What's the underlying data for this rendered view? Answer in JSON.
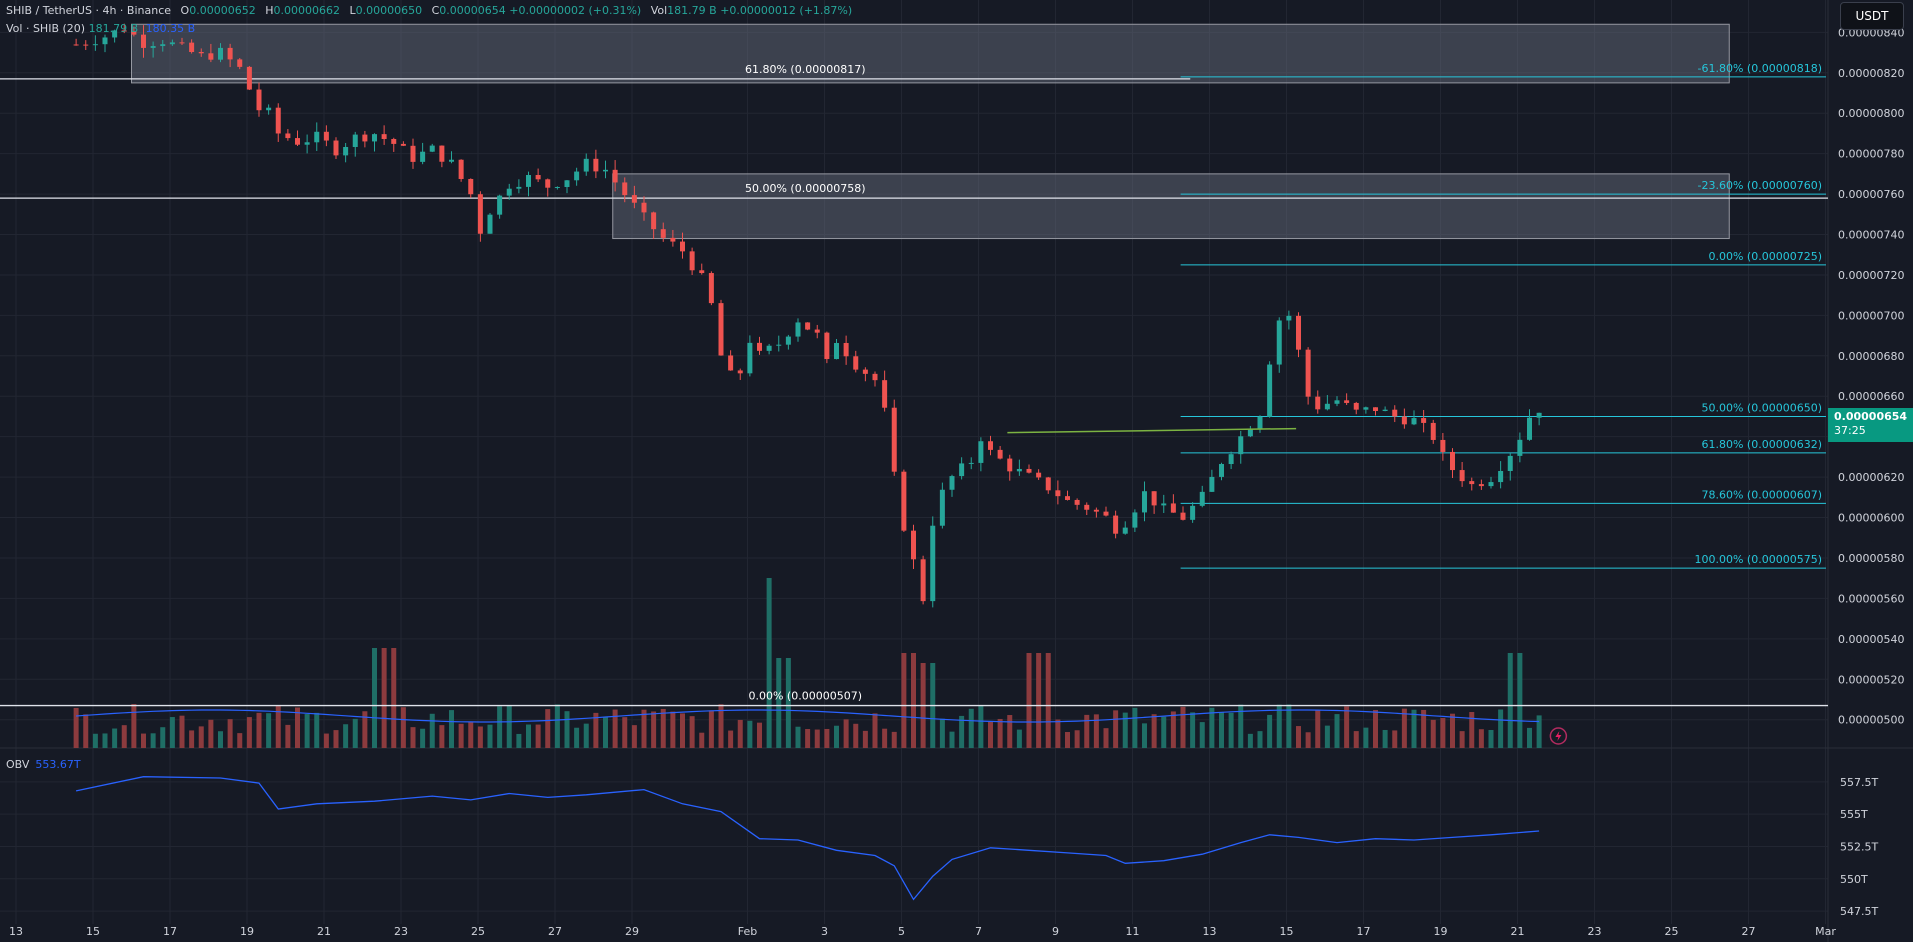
{
  "header": {
    "symbol": "SHIB / TetherUS · 4h · Binance",
    "open_label": "O",
    "open": "0.00000652",
    "high_label": "H",
    "high": "0.00000662",
    "low_label": "L",
    "low": "0.00000650",
    "close_label": "C",
    "close": "0.00000654",
    "change": "+0.00000002 (+0.31%)",
    "vol_label": "Vol",
    "vol": "181.79 B",
    "vol_change": "+0.00000012 (+1.87%)",
    "vol_indicator": "Vol · SHIB (20)",
    "vol_values": "181.79 B",
    "vol_ma": "180.35 B"
  },
  "currency_button": "USDT",
  "last_price": {
    "price": "0.00000654",
    "countdown": "37:25"
  },
  "obv": {
    "label": "OBV",
    "value": "553.67T"
  },
  "colors": {
    "background": "#161a25",
    "grid": "#222632",
    "up": "#26a69a",
    "down": "#ef5350",
    "vol_up": "#1f6e66",
    "vol_down": "#8c3b3e",
    "fib": "#26c6da",
    "obv": "#2962ff",
    "trendline": "#7cb342",
    "zone": "#6b7080"
  },
  "chart_data": {
    "type": "candlestick",
    "symbol": "SHIB/USDT",
    "timeframe": "4h",
    "price_axis": {
      "range": [
        4.86e-06,
        8.56e-06
      ],
      "ticks": [
        "0.00000500",
        "0.00000520",
        "0.00000540",
        "0.00000560",
        "0.00000580",
        "0.00000600",
        "0.00000620",
        "0.00000640",
        "0.00000660",
        "0.00000680",
        "0.00000700",
        "0.00000720",
        "0.00000740",
        "0.00000760",
        "0.00000780",
        "0.00000800",
        "0.00000820",
        "0.00000840"
      ]
    },
    "obv_axis": {
      "range": [
        546.5,
        559.5
      ],
      "ticks": [
        "557.5T",
        "555T",
        "552.5T",
        "550T",
        "547.5T"
      ]
    },
    "time_axis": [
      "13",
      "15",
      "17",
      "19",
      "21",
      "23",
      "25",
      "27",
      "29",
      "Feb",
      "3",
      "5",
      "7",
      "9",
      "11",
      "13",
      "15",
      "17",
      "19",
      "21",
      "23",
      "25",
      "27",
      "Mar"
    ],
    "price_path": [
      [
        -1.5,
        834
      ],
      [
        0,
        838
      ],
      [
        1,
        842
      ],
      [
        2,
        835
      ],
      [
        3,
        836
      ],
      [
        4,
        832
      ],
      [
        5,
        828
      ],
      [
        6,
        830
      ],
      [
        7,
        822
      ],
      [
        8,
        802
      ],
      [
        8.5,
        800
      ],
      [
        9,
        790
      ],
      [
        10,
        786
      ],
      [
        11,
        788
      ],
      [
        12,
        782
      ],
      [
        13,
        788
      ],
      [
        14,
        790
      ],
      [
        15,
        785
      ],
      [
        16,
        778
      ],
      [
        17,
        782
      ],
      [
        18,
        775
      ],
      [
        19,
        760
      ],
      [
        19.5,
        742
      ],
      [
        20,
        752
      ],
      [
        21,
        765
      ],
      [
        22,
        768
      ],
      [
        23,
        764
      ],
      [
        24,
        768
      ],
      [
        25,
        775
      ],
      [
        26,
        772
      ],
      [
        27,
        760
      ],
      [
        28,
        748
      ],
      [
        29,
        738
      ],
      [
        30,
        732
      ],
      [
        31,
        718
      ],
      [
        31.5,
        705
      ],
      [
        32,
        680
      ],
      [
        32.5,
        670
      ],
      [
        33,
        672
      ],
      [
        33.5,
        688
      ],
      [
        34,
        680
      ],
      [
        35,
        686
      ],
      [
        36,
        698
      ],
      [
        37,
        690
      ],
      [
        37.5,
        676
      ],
      [
        38,
        688
      ],
      [
        39,
        676
      ],
      [
        40,
        668
      ],
      [
        40.5,
        652
      ],
      [
        41,
        620
      ],
      [
        41.5,
        596
      ],
      [
        42,
        578
      ],
      [
        42.5,
        560
      ],
      [
        43,
        598
      ],
      [
        43.5,
        612
      ],
      [
        44,
        620
      ],
      [
        45,
        628
      ],
      [
        45.5,
        640
      ],
      [
        46,
        632
      ],
      [
        47,
        625
      ],
      [
        48,
        620
      ],
      [
        49,
        615
      ],
      [
        50,
        608
      ],
      [
        51,
        605
      ],
      [
        52,
        600
      ],
      [
        52.5,
        595
      ],
      [
        53,
        598
      ],
      [
        54,
        612
      ],
      [
        55,
        604
      ],
      [
        56,
        600
      ],
      [
        57,
        610
      ],
      [
        58,
        628
      ],
      [
        59,
        640
      ],
      [
        60,
        652
      ],
      [
        60.5,
        678
      ],
      [
        61,
        698
      ],
      [
        61.5,
        700
      ],
      [
        62,
        682
      ],
      [
        62.5,
        660
      ],
      [
        63,
        655
      ],
      [
        64,
        658
      ],
      [
        65,
        652
      ],
      [
        66,
        654
      ],
      [
        67,
        650
      ],
      [
        68,
        648
      ],
      [
        69,
        640
      ],
      [
        69.5,
        630
      ],
      [
        70,
        624
      ],
      [
        71,
        616
      ],
      [
        72,
        620
      ],
      [
        73,
        632
      ],
      [
        73.5,
        640
      ],
      [
        74,
        650
      ],
      [
        74.5,
        654
      ]
    ],
    "volume_spikes": [
      [
        14.4,
        1.0
      ],
      [
        35.0,
        1.7
      ],
      [
        35.2,
        0.9
      ],
      [
        41.8,
        0.95
      ],
      [
        42.8,
        0.85
      ],
      [
        48.5,
        0.95
      ],
      [
        73.2,
        0.95
      ]
    ],
    "obv_path": [
      [
        -1.5,
        556.8
      ],
      [
        2,
        557.9
      ],
      [
        6,
        557.8
      ],
      [
        8,
        557.4
      ],
      [
        9,
        555.4
      ],
      [
        11,
        555.8
      ],
      [
        14,
        556.0
      ],
      [
        17,
        556.4
      ],
      [
        19,
        556.1
      ],
      [
        21,
        556.6
      ],
      [
        23,
        556.3
      ],
      [
        25,
        556.5
      ],
      [
        28,
        556.9
      ],
      [
        30,
        555.8
      ],
      [
        32,
        555.2
      ],
      [
        34,
        553.1
      ],
      [
        36,
        553.0
      ],
      [
        38,
        552.2
      ],
      [
        40,
        551.8
      ],
      [
        41,
        551.0
      ],
      [
        42,
        548.4
      ],
      [
        43,
        550.2
      ],
      [
        44,
        551.5
      ],
      [
        46,
        552.4
      ],
      [
        48,
        552.2
      ],
      [
        50,
        552.0
      ],
      [
        52,
        551.8
      ],
      [
        53,
        551.2
      ],
      [
        55,
        551.4
      ],
      [
        57,
        551.9
      ],
      [
        59,
        552.8
      ],
      [
        60.5,
        553.4
      ],
      [
        62,
        553.2
      ],
      [
        64,
        552.8
      ],
      [
        66,
        553.1
      ],
      [
        68,
        553.0
      ],
      [
        70,
        553.2
      ],
      [
        72,
        553.4
      ],
      [
        74.5,
        553.7
      ]
    ],
    "horizontal_levels": [
      {
        "label": "61.80% (0.00000817)",
        "price": 8.17e-06,
        "from_x": -3,
        "to_x": 57
      },
      {
        "label": "50.00% (0.00000758)",
        "price": 7.58e-06,
        "from_x": -3,
        "to_x": 92
      },
      {
        "label": "0.00% (0.00000507)",
        "price": 5.07e-06,
        "from_x": -3,
        "to_x": 92
      }
    ],
    "zones": [
      {
        "from_x": 2,
        "to_x": 85,
        "top": 8.44e-06,
        "bottom": 8.15e-06
      },
      {
        "from_x": 27,
        "to_x": 85,
        "top": 7.7e-06,
        "bottom": 7.38e-06
      }
    ],
    "trendline": {
      "from": [
        47.5,
        6.42e-06
      ],
      "to": [
        62.5,
        6.44e-06
      ]
    },
    "fib_retracement": {
      "from_x": 56.5,
      "to_x": 91,
      "levels": [
        {
          "label": "-61.80% (0.00000818)",
          "price": 8.18e-06
        },
        {
          "label": "-23.60% (0.00000760)",
          "price": 7.6e-06
        },
        {
          "label": "0.00% (0.00000725)",
          "price": 7.25e-06
        },
        {
          "label": "50.00% (0.00000650)",
          "price": 6.5e-06
        },
        {
          "label": "61.80% (0.00000632)",
          "price": 6.32e-06
        },
        {
          "label": "78.60% (0.00000607)",
          "price": 6.07e-06
        },
        {
          "label": "100.00% (0.00000575)",
          "price": 5.75e-06
        }
      ]
    }
  }
}
